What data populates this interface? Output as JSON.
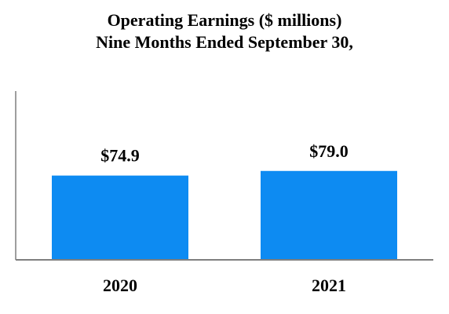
{
  "chart_data": {
    "type": "bar",
    "title": "Operating Earnings ($ millions)",
    "subtitle": "Nine Months Ended September 30,",
    "categories": [
      "2020",
      "2021"
    ],
    "values": [
      74.9,
      79.0
    ],
    "data_labels": [
      "$74.9",
      "$79.0"
    ],
    "xlabel": "",
    "ylabel": "",
    "ylim": [
      0,
      150
    ],
    "grid": false,
    "legend": "none",
    "bar_color": "#0D8BF2",
    "axis_color": "#7F7F7F"
  }
}
